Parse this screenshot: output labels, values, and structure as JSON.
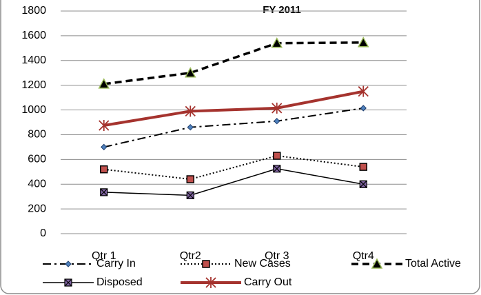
{
  "chart_data": {
    "type": "line",
    "title": "FY 2011",
    "categories": [
      "Qtr 1",
      "Qtr2",
      "Qtr 3",
      "Qtr4"
    ],
    "series": [
      {
        "name": "Carry In",
        "color": "#000000",
        "values": [
          700,
          860,
          910,
          1015
        ]
      },
      {
        "name": "New Cases",
        "color": "#000000",
        "values": [
          520,
          440,
          630,
          540
        ]
      },
      {
        "name": "Total Active",
        "color": "#000000",
        "values": [
          1210,
          1300,
          1540,
          1545
        ]
      },
      {
        "name": "Disposed",
        "color": "#000000",
        "values": [
          335,
          310,
          525,
          400
        ]
      },
      {
        "name": "Carry Out",
        "color": "#a5332e",
        "values": [
          875,
          990,
          1015,
          1150
        ]
      }
    ],
    "ylim": [
      0,
      1800
    ],
    "yticks": [
      0,
      200,
      400,
      600,
      800,
      1000,
      1200,
      1400,
      1600,
      1800
    ],
    "grid": true,
    "legend": "bottom"
  }
}
